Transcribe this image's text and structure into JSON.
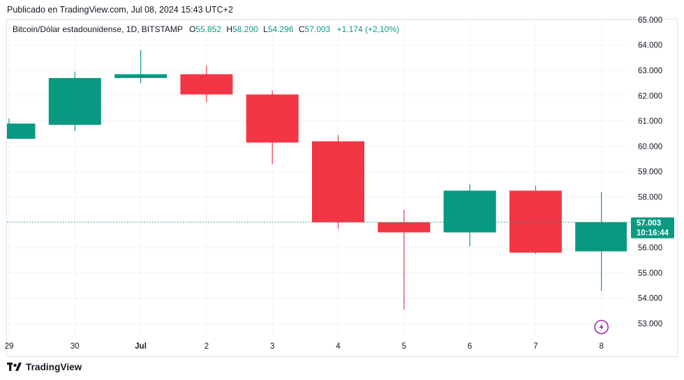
{
  "header": {
    "published": "Publicado en TradingView.com, Jul 08, 2024 15:43 UTC+2"
  },
  "legend": {
    "symbol": "Bitcoin/Dólar estadounidense, 1D, BITSTAMP",
    "o_label": "O",
    "o_value": "55.852",
    "h_label": "H",
    "h_value": "58.200",
    "l_label": "L",
    "l_value": "54.296",
    "c_label": "C",
    "c_value": "57.003",
    "change": "+1.174 (+2,10%)"
  },
  "price_tag": {
    "price": "57.003",
    "countdown": "10:16:44"
  },
  "footer": {
    "brand": "TradingView",
    "logo_icon": "tradingview-logo-icon"
  },
  "colors": {
    "up": "#089981",
    "down": "#f23645",
    "grid": "#f0f3fa",
    "current": "#089981",
    "badge": "#9c27b0"
  },
  "chart_data": {
    "type": "candlestick",
    "x_tick_labels": [
      "29",
      "30",
      "Jul",
      "2",
      "3",
      "4",
      "5",
      "6",
      "7",
      "8"
    ],
    "y_ticks": [
      "53.000",
      "54.000",
      "55.000",
      "56.000",
      "57.000",
      "58.000",
      "59.000",
      "60.000",
      "61.000",
      "62.000",
      "63.000",
      "64.000",
      "65.000"
    ],
    "ylim": [
      52500,
      65000
    ],
    "current_price": 57003,
    "candles": [
      {
        "date": "29",
        "open": 60300,
        "high": 61100,
        "low": 60300,
        "close": 60900
      },
      {
        "date": "30",
        "open": 60850,
        "high": 62950,
        "low": 60600,
        "close": 62700
      },
      {
        "date": "Jul",
        "open": 62700,
        "high": 63800,
        "low": 62500,
        "close": 62850
      },
      {
        "date": "2",
        "open": 62850,
        "high": 63200,
        "low": 61750,
        "close": 62050
      },
      {
        "date": "3",
        "open": 62050,
        "high": 62200,
        "low": 59300,
        "close": 60150
      },
      {
        "date": "4",
        "open": 60200,
        "high": 60450,
        "low": 56750,
        "close": 57000
      },
      {
        "date": "5",
        "open": 57000,
        "high": 57500,
        "low": 53550,
        "close": 56600
      },
      {
        "date": "6",
        "open": 56600,
        "high": 58500,
        "low": 56050,
        "close": 58250
      },
      {
        "date": "7",
        "open": 58250,
        "high": 58450,
        "low": 55750,
        "close": 55800
      },
      {
        "date": "8",
        "open": 55852,
        "high": 58200,
        "low": 54296,
        "close": 57003
      }
    ]
  }
}
